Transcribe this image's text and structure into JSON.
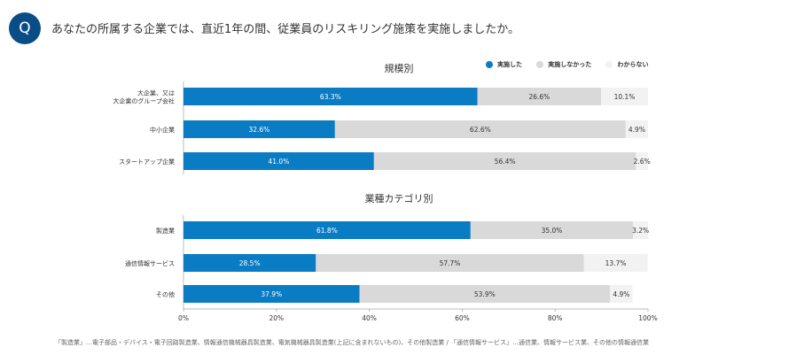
{
  "question": {
    "badge": "Q",
    "text": "あなたの所属する企業では、直近1年の間、従業員のリスキリング施策を実施しましたか。"
  },
  "legend": [
    {
      "label": "実施した",
      "color": "#0a7cc4"
    },
    {
      "label": "実施しなかった",
      "color": "#d9d9d9"
    },
    {
      "label": "わからない",
      "color": "#f2f2f2"
    }
  ],
  "footnote": "「製造業」…電子部品・デバイス・電子回路製造業、情報通信機械器具製造業、電気機械器具製造業(上記に含まれないもの)、その他製造業 / 「通信情報サービス」…通信業、情報サービス業、その他の情報通信業",
  "chart_data": {
    "type": "bar",
    "orientation": "horizontal",
    "stacked": true,
    "percent": true,
    "xlim": [
      0,
      100
    ],
    "x_ticks": [
      "0%",
      "20%",
      "40%",
      "60%",
      "80%",
      "100%"
    ],
    "series_colors": [
      "#0a7cc4",
      "#d9d9d9",
      "#f2f2f2"
    ],
    "series_names": [
      "実施した",
      "実施しなかった",
      "わからない"
    ],
    "groups": [
      {
        "title": "規模別",
        "rows": [
          {
            "label": [
              "大企業、又は",
              "大企業のグループ会社"
            ],
            "values": [
              63.3,
              26.6,
              10.1
            ],
            "labels": [
              "63.3%",
              "26.6%",
              "10.1%"
            ]
          },
          {
            "label": [
              "中小企業"
            ],
            "values": [
              32.6,
              62.6,
              4.9
            ],
            "labels": [
              "32.6%",
              "62.6%",
              "4.9%"
            ]
          },
          {
            "label": [
              "スタートアップ企業"
            ],
            "values": [
              41.0,
              56.4,
              2.6
            ],
            "labels": [
              "41.0%",
              "56.4%",
              "2.6%"
            ]
          }
        ]
      },
      {
        "title": "業種カテゴリ別",
        "rows": [
          {
            "label": [
              "製造業"
            ],
            "values": [
              61.8,
              35.0,
              3.2
            ],
            "labels": [
              "61.8%",
              "35.0%",
              "3.2%"
            ]
          },
          {
            "label": [
              "通信情報サービス"
            ],
            "values": [
              28.5,
              57.7,
              13.7
            ],
            "labels": [
              "28.5%",
              "57.7%",
              "13.7%"
            ]
          },
          {
            "label": [
              "その他"
            ],
            "values": [
              37.9,
              53.9,
              4.9
            ],
            "labels": [
              "37.9%",
              "53.9%",
              "4.9%"
            ]
          }
        ]
      }
    ]
  }
}
